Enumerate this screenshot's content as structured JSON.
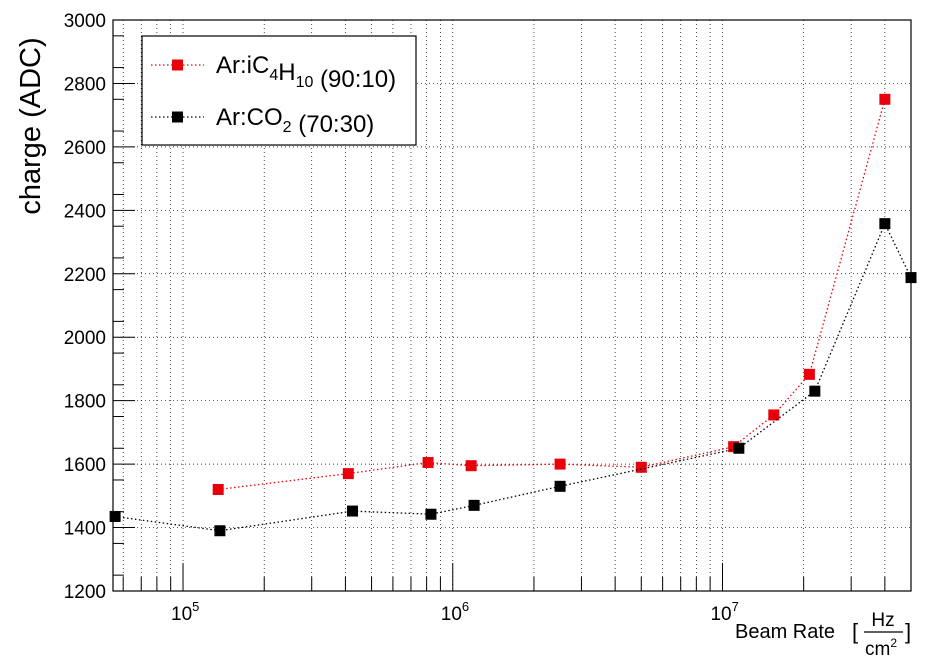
{
  "chart_data": {
    "type": "scatter",
    "title": "",
    "xlabel": "Beam Rate",
    "xlabel_unit_numerator": "Hz",
    "xlabel_unit_denominator": "cm",
    "xlabel_unit_denominator_exp": "2",
    "ylabel": "charge (ADC)",
    "x_scale": "log",
    "xlim": [
      55000,
      50000000
    ],
    "ylim": [
      1200,
      3000
    ],
    "y_ticks": [
      1200,
      1400,
      1600,
      1800,
      2000,
      2200,
      2400,
      2600,
      2800,
      3000
    ],
    "x_tick_labels": [
      {
        "value": 100000,
        "base": "10",
        "exp": "5"
      },
      {
        "value": 1000000,
        "base": "10",
        "exp": "6"
      },
      {
        "value": 10000000,
        "base": "10",
        "exp": "7"
      }
    ],
    "grid": true,
    "legend_position": "top-left",
    "series": [
      {
        "name_parts": [
          {
            "text": "Ar:iC",
            "sub": false
          },
          {
            "text": "4",
            "sub": true
          },
          {
            "text": "H",
            "sub": false
          },
          {
            "text": "10",
            "sub": true
          },
          {
            "text": " (90:10)",
            "sub": false
          }
        ],
        "color": "#e8000b",
        "line_style": "dotted",
        "x": [
          135000,
          410000,
          810000,
          1170000,
          2500000,
          5000000,
          11000000,
          15500000,
          21000000,
          40000000
        ],
        "y": [
          1520,
          1570,
          1605,
          1595,
          1600,
          1590,
          1655,
          1755,
          1883,
          2750
        ]
      },
      {
        "name_parts": [
          {
            "text": "Ar:CO",
            "sub": false
          },
          {
            "text": "2",
            "sub": true
          },
          {
            "text": " (70:30)",
            "sub": false
          }
        ],
        "color": "#000000",
        "line_style": "dotted",
        "x": [
          56000,
          137000,
          425000,
          830000,
          1200000,
          2500000,
          11500000,
          22000000,
          40000000,
          50000000
        ],
        "y": [
          1435,
          1390,
          1452,
          1442,
          1470,
          1530,
          1650,
          1830,
          2358,
          2188
        ]
      }
    ]
  }
}
